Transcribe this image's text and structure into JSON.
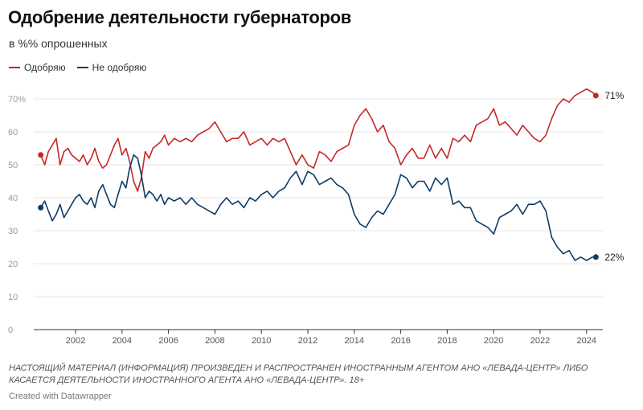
{
  "title": "Одобрение деятельности губернаторов",
  "subtitle": "в %% опрошенных",
  "disclaimer": "НАСТОЯЩИЙ МАТЕРИАЛ (ИНФОРМАЦИЯ) ПРОИЗВЕДЕН И РАСПРОСТРАНЕН ИНОСТРАННЫМ АГЕНТОМ АНО «ЛЕВАДА-ЦЕНТР» ЛИБО КАСАЕТСЯ ДЕЯТЕЛЬНОСТИ ИНОСТРАННОГО АГЕНТА АНО «ЛЕВАДА-ЦЕНТР». 18+",
  "credit": "Created with Datawrapper",
  "colors": {
    "approve": "#c62828",
    "disapprove": "#0d3b66",
    "grid": "#e6e6e6",
    "baseline": "#333333"
  },
  "chart_data": {
    "type": "line",
    "title": "Одобрение деятельности губернаторов",
    "subtitle": "в %% опрошенных",
    "xlim": [
      2000.2,
      2024.7
    ],
    "ylim": [
      0,
      70
    ],
    "yticks": [
      0,
      10,
      20,
      30,
      40,
      50,
      60,
      70
    ],
    "ytick_labels": [
      "0",
      "10",
      "20",
      "30",
      "40",
      "50",
      "60",
      "70%"
    ],
    "xticks": [
      2002,
      2004,
      2006,
      2008,
      2010,
      2012,
      2014,
      2016,
      2018,
      2020,
      2022,
      2024
    ],
    "xtick_labels": [
      "2002",
      "2004",
      "2006",
      "2008",
      "2010",
      "2012",
      "2014",
      "2016",
      "2018",
      "2020",
      "2022",
      "2024"
    ],
    "grid": true,
    "legend_position": "top-left",
    "series": [
      {
        "name": "Одобряю",
        "color": "#c62828",
        "end_label": "71%",
        "x": [
          2000.5,
          2000.67,
          2000.83,
          2001.0,
          2001.17,
          2001.33,
          2001.5,
          2001.67,
          2001.83,
          2002.0,
          2002.17,
          2002.33,
          2002.5,
          2002.67,
          2002.83,
          2003.0,
          2003.17,
          2003.33,
          2003.5,
          2003.67,
          2003.83,
          2004.0,
          2004.17,
          2004.33,
          2004.5,
          2004.67,
          2004.83,
          2005.0,
          2005.17,
          2005.33,
          2005.5,
          2005.67,
          2005.83,
          2006.0,
          2006.25,
          2006.5,
          2006.75,
          2007.0,
          2007.25,
          2007.5,
          2007.75,
          2008.0,
          2008.25,
          2008.5,
          2008.75,
          2009.0,
          2009.25,
          2009.5,
          2009.75,
          2010.0,
          2010.25,
          2010.5,
          2010.75,
          2011.0,
          2011.25,
          2011.5,
          2011.75,
          2012.0,
          2012.25,
          2012.5,
          2012.75,
          2013.0,
          2013.25,
          2013.5,
          2013.75,
          2014.0,
          2014.25,
          2014.5,
          2014.75,
          2015.0,
          2015.25,
          2015.5,
          2015.75,
          2016.0,
          2016.25,
          2016.5,
          2016.75,
          2017.0,
          2017.25,
          2017.5,
          2017.75,
          2018.0,
          2018.25,
          2018.5,
          2018.75,
          2019.0,
          2019.25,
          2019.5,
          2019.75,
          2020.0,
          2020.25,
          2020.5,
          2020.75,
          2021.0,
          2021.25,
          2021.5,
          2021.75,
          2022.0,
          2022.25,
          2022.5,
          2022.75,
          2023.0,
          2023.25,
          2023.5,
          2023.75,
          2024.0,
          2024.25,
          2024.4
        ],
        "values": [
          53,
          50,
          54,
          56,
          58,
          50,
          54,
          55,
          53,
          52,
          51,
          53,
          50,
          52,
          55,
          51,
          49,
          50,
          53,
          56,
          58,
          53,
          55,
          51,
          45,
          42,
          46,
          54,
          52,
          55,
          56,
          57,
          59,
          56,
          58,
          57,
          58,
          57,
          59,
          60,
          61,
          63,
          60,
          57,
          58,
          58,
          60,
          56,
          57,
          58,
          56,
          58,
          57,
          58,
          54,
          50,
          53,
          50,
          49,
          54,
          53,
          51,
          54,
          55,
          56,
          62,
          65,
          67,
          64,
          60,
          62,
          57,
          55,
          50,
          53,
          55,
          52,
          52,
          56,
          52,
          55,
          52,
          58,
          57,
          59,
          57,
          62,
          63,
          64,
          67,
          62,
          63,
          61,
          59,
          62,
          60,
          58,
          57,
          59,
          64,
          68,
          70,
          69,
          71,
          72,
          73,
          72,
          71
        ]
      },
      {
        "name": "Не одобряю",
        "color": "#0d3b66",
        "end_label": "22%",
        "x": [
          2000.5,
          2000.67,
          2000.83,
          2001.0,
          2001.17,
          2001.33,
          2001.5,
          2001.67,
          2001.83,
          2002.0,
          2002.17,
          2002.33,
          2002.5,
          2002.67,
          2002.83,
          2003.0,
          2003.17,
          2003.33,
          2003.5,
          2003.67,
          2003.83,
          2004.0,
          2004.17,
          2004.33,
          2004.5,
          2004.67,
          2004.83,
          2005.0,
          2005.17,
          2005.33,
          2005.5,
          2005.67,
          2005.83,
          2006.0,
          2006.25,
          2006.5,
          2006.75,
          2007.0,
          2007.25,
          2007.5,
          2007.75,
          2008.0,
          2008.25,
          2008.5,
          2008.75,
          2009.0,
          2009.25,
          2009.5,
          2009.75,
          2010.0,
          2010.25,
          2010.5,
          2010.75,
          2011.0,
          2011.25,
          2011.5,
          2011.75,
          2012.0,
          2012.25,
          2012.5,
          2012.75,
          2013.0,
          2013.25,
          2013.5,
          2013.75,
          2014.0,
          2014.25,
          2014.5,
          2014.75,
          2015.0,
          2015.25,
          2015.5,
          2015.75,
          2016.0,
          2016.25,
          2016.5,
          2016.75,
          2017.0,
          2017.25,
          2017.5,
          2017.75,
          2018.0,
          2018.25,
          2018.5,
          2018.75,
          2019.0,
          2019.25,
          2019.5,
          2019.75,
          2020.0,
          2020.25,
          2020.5,
          2020.75,
          2021.0,
          2021.25,
          2021.5,
          2021.75,
          2022.0,
          2022.25,
          2022.5,
          2022.75,
          2023.0,
          2023.25,
          2023.5,
          2023.75,
          2024.0,
          2024.25,
          2024.4
        ],
        "values": [
          37,
          39,
          36,
          33,
          35,
          38,
          34,
          36,
          38,
          40,
          41,
          39,
          38,
          40,
          37,
          42,
          44,
          41,
          38,
          37,
          41,
          45,
          43,
          49,
          53,
          52,
          47,
          40,
          42,
          41,
          39,
          41,
          38,
          40,
          39,
          40,
          38,
          40,
          38,
          37,
          36,
          35,
          38,
          40,
          38,
          39,
          37,
          40,
          39,
          41,
          42,
          40,
          42,
          43,
          46,
          48,
          44,
          48,
          47,
          44,
          45,
          46,
          44,
          43,
          41,
          35,
          32,
          31,
          34,
          36,
          35,
          38,
          41,
          47,
          46,
          43,
          45,
          45,
          42,
          46,
          44,
          46,
          38,
          39,
          37,
          37,
          33,
          32,
          31,
          29,
          34,
          35,
          36,
          38,
          35,
          38,
          38,
          39,
          36,
          28,
          25,
          23,
          24,
          21,
          22,
          21,
          22,
          22
        ]
      }
    ]
  }
}
